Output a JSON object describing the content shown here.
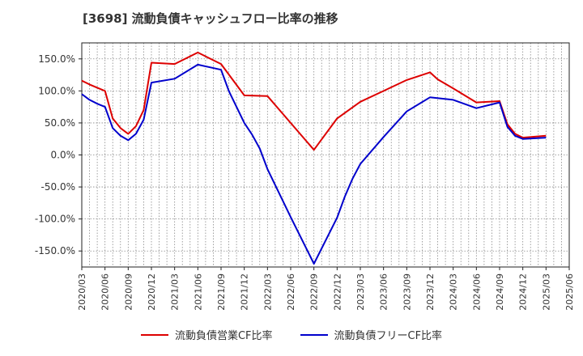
{
  "chart_data": {
    "type": "line",
    "title": "[3698]  流動負債キャッシュフロー比率の推移",
    "xlabel": "",
    "ylabel": "",
    "ylim": [
      -175,
      175
    ],
    "yticks": [
      150,
      100,
      50,
      0,
      -50,
      -100,
      -150
    ],
    "ytick_labels": [
      "150.0%",
      "100.0%",
      "50.0%",
      "0.0%",
      "-50.0%",
      "-100.0%",
      "-150.0%"
    ],
    "x_range": [
      "2020/03",
      "2025/06"
    ],
    "x_ticks": [
      "2020/03",
      "2020/06",
      "2020/09",
      "2020/12",
      "2021/03",
      "2021/06",
      "2021/09",
      "2021/12",
      "2022/03",
      "2022/06",
      "2022/09",
      "2022/12",
      "2023/03",
      "2023/06",
      "2023/09",
      "2023/12",
      "2024/03",
      "2024/06",
      "2024/09",
      "2024/12",
      "2025/03",
      "2025/06"
    ],
    "grid": true,
    "legend_position": "bottom",
    "series": [
      {
        "name": "流動負債営業CF比率",
        "color": "#dd0000",
        "points": [
          [
            "2020/03",
            116
          ],
          [
            "2020/04",
            110
          ],
          [
            "2020/05",
            105
          ],
          [
            "2020/06",
            100
          ],
          [
            "2020/07",
            57
          ],
          [
            "2020/08",
            42
          ],
          [
            "2020/09",
            33
          ],
          [
            "2020/10",
            45
          ],
          [
            "2020/11",
            70
          ],
          [
            "2020/12",
            144
          ],
          [
            "2021/03",
            142
          ],
          [
            "2021/06",
            160
          ],
          [
            "2021/09",
            142
          ],
          [
            "2021/12",
            93
          ],
          [
            "2022/03",
            92
          ],
          [
            "2022/09",
            8
          ],
          [
            "2022/12",
            57
          ],
          [
            "2023/03",
            83
          ],
          [
            "2023/06",
            100
          ],
          [
            "2023/09",
            117
          ],
          [
            "2023/12",
            129
          ],
          [
            "2024/01",
            118
          ],
          [
            "2024/03",
            104
          ],
          [
            "2024/06",
            82
          ],
          [
            "2024/09",
            84
          ],
          [
            "2024/10",
            48
          ],
          [
            "2024/11",
            33
          ],
          [
            "2024/12",
            27
          ],
          [
            "2025/03",
            30
          ]
        ]
      },
      {
        "name": "流動負債フリーCF比率",
        "color": "#0000cc",
        "points": [
          [
            "2020/03",
            95
          ],
          [
            "2020/04",
            86
          ],
          [
            "2020/05",
            80
          ],
          [
            "2020/06",
            75
          ],
          [
            "2020/07",
            42
          ],
          [
            "2020/08",
            30
          ],
          [
            "2020/09",
            23
          ],
          [
            "2020/10",
            33
          ],
          [
            "2020/11",
            55
          ],
          [
            "2020/12",
            113
          ],
          [
            "2021/03",
            119
          ],
          [
            "2021/06",
            141
          ],
          [
            "2021/09",
            133
          ],
          [
            "2021/10",
            100
          ],
          [
            "2021/11",
            75
          ],
          [
            "2021/12",
            50
          ],
          [
            "2022/01",
            32
          ],
          [
            "2022/02",
            10
          ],
          [
            "2022/03",
            -22
          ],
          [
            "2022/06",
            -97
          ],
          [
            "2022/09",
            -170
          ],
          [
            "2022/12",
            -98
          ],
          [
            "2023/01",
            -65
          ],
          [
            "2023/02",
            -37
          ],
          [
            "2023/03",
            -14
          ],
          [
            "2023/06",
            28
          ],
          [
            "2023/09",
            68
          ],
          [
            "2023/12",
            90
          ],
          [
            "2024/03",
            86
          ],
          [
            "2024/06",
            73
          ],
          [
            "2024/09",
            82
          ],
          [
            "2024/10",
            44
          ],
          [
            "2024/11",
            30
          ],
          [
            "2024/12",
            25
          ],
          [
            "2025/03",
            27
          ]
        ]
      }
    ]
  }
}
